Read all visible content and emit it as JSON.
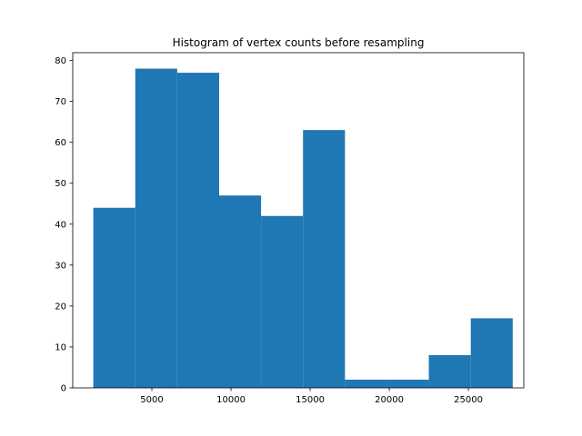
{
  "chart_data": {
    "type": "bar",
    "title": "Histogram of vertex counts before resampling",
    "xlabel": "",
    "ylabel": "",
    "bar_color": "#1f77b4",
    "xlim": [
      0,
      28500
    ],
    "ylim": [
      0,
      81.9
    ],
    "bin_edges": [
      1300,
      3950,
      6600,
      9250,
      11900,
      14550,
      17200,
      19850,
      22500,
      25150,
      27800
    ],
    "values": [
      44,
      78,
      77,
      47,
      42,
      63,
      2,
      2,
      8,
      17
    ],
    "x_ticks": [
      5000,
      10000,
      15000,
      20000,
      25000
    ],
    "x_tick_labels": [
      "5000",
      "10000",
      "15000",
      "20000",
      "25000"
    ],
    "y_ticks": [
      0,
      10,
      20,
      30,
      40,
      50,
      60,
      70,
      80
    ],
    "y_tick_labels": [
      "0",
      "10",
      "20",
      "30",
      "40",
      "50",
      "60",
      "70",
      "80"
    ],
    "grid": false
  }
}
